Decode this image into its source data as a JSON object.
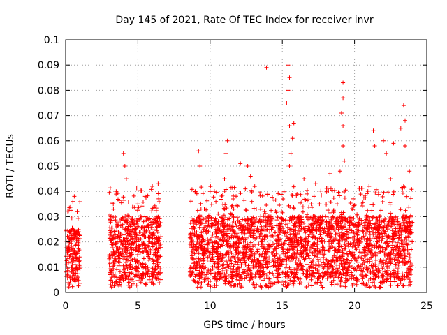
{
  "chart_data": {
    "type": "scatter",
    "title": "Day 145 of 2021, Rate Of TEC Index for receiver invr",
    "xlabel": "GPS time / hours",
    "ylabel": "ROTI / TECUs",
    "xlim": [
      0,
      25
    ],
    "ylim": [
      0,
      0.1
    ],
    "x_ticks": [
      0,
      5,
      10,
      15,
      20,
      25
    ],
    "x_tick_labels": [
      "0",
      "5",
      "10",
      "15",
      "20",
      "25"
    ],
    "y_ticks": [
      0,
      0.01,
      0.02,
      0.03,
      0.04,
      0.05,
      0.06,
      0.07,
      0.08,
      0.09,
      0.1
    ],
    "y_tick_labels": [
      "0",
      "0.01",
      "0.02",
      "0.03",
      "0.04",
      "0.05",
      "0.06",
      "0.07",
      "0.08",
      "0.09",
      "0.1"
    ],
    "grid": true,
    "marker": "+",
    "color": "#ff0000",
    "segments": [
      {
        "x_start": 0.0,
        "x_end": 1.0,
        "low": 0.005,
        "high": 0.025
      },
      {
        "x_start": 3.0,
        "x_end": 6.6,
        "low": 0.005,
        "high": 0.03
      },
      {
        "x_start": 8.6,
        "x_end": 24.0,
        "low": 0.005,
        "high": 0.03
      }
    ],
    "outliers": [
      {
        "x": 0.5,
        "y": 0.036
      },
      {
        "x": 0.6,
        "y": 0.038
      },
      {
        "x": 0.8,
        "y": 0.032
      },
      {
        "x": 3.3,
        "y": 0.035
      },
      {
        "x": 3.5,
        "y": 0.04
      },
      {
        "x": 4.0,
        "y": 0.055
      },
      {
        "x": 4.1,
        "y": 0.05
      },
      {
        "x": 4.2,
        "y": 0.045
      },
      {
        "x": 5.0,
        "y": 0.035
      },
      {
        "x": 5.5,
        "y": 0.038
      },
      {
        "x": 6.0,
        "y": 0.042
      },
      {
        "x": 6.4,
        "y": 0.043
      },
      {
        "x": 9.2,
        "y": 0.056
      },
      {
        "x": 9.3,
        "y": 0.05
      },
      {
        "x": 10.0,
        "y": 0.04
      },
      {
        "x": 11.2,
        "y": 0.06
      },
      {
        "x": 11.1,
        "y": 0.055
      },
      {
        "x": 11.0,
        "y": 0.045
      },
      {
        "x": 12.1,
        "y": 0.051
      },
      {
        "x": 12.6,
        "y": 0.05
      },
      {
        "x": 12.8,
        "y": 0.046
      },
      {
        "x": 13.9,
        "y": 0.089
      },
      {
        "x": 15.4,
        "y": 0.09
      },
      {
        "x": 15.5,
        "y": 0.085
      },
      {
        "x": 15.4,
        "y": 0.08
      },
      {
        "x": 15.3,
        "y": 0.075
      },
      {
        "x": 15.5,
        "y": 0.066
      },
      {
        "x": 15.7,
        "y": 0.061
      },
      {
        "x": 15.8,
        "y": 0.067
      },
      {
        "x": 15.6,
        "y": 0.055
      },
      {
        "x": 15.5,
        "y": 0.05
      },
      {
        "x": 16.5,
        "y": 0.045
      },
      {
        "x": 17.3,
        "y": 0.043
      },
      {
        "x": 18.3,
        "y": 0.047
      },
      {
        "x": 19.0,
        "y": 0.048
      },
      {
        "x": 19.2,
        "y": 0.083
      },
      {
        "x": 19.2,
        "y": 0.077
      },
      {
        "x": 19.1,
        "y": 0.071
      },
      {
        "x": 19.2,
        "y": 0.066
      },
      {
        "x": 19.2,
        "y": 0.058
      },
      {
        "x": 19.3,
        "y": 0.052
      },
      {
        "x": 21.3,
        "y": 0.064
      },
      {
        "x": 21.4,
        "y": 0.058
      },
      {
        "x": 22.0,
        "y": 0.06
      },
      {
        "x": 22.2,
        "y": 0.055
      },
      {
        "x": 22.7,
        "y": 0.059
      },
      {
        "x": 23.2,
        "y": 0.065
      },
      {
        "x": 23.4,
        "y": 0.074
      },
      {
        "x": 23.5,
        "y": 0.068
      },
      {
        "x": 23.5,
        "y": 0.058
      },
      {
        "x": 23.8,
        "y": 0.048
      },
      {
        "x": 20.5,
        "y": 0.035
      },
      {
        "x": 21.0,
        "y": 0.042
      },
      {
        "x": 22.5,
        "y": 0.045
      },
      {
        "x": 14.0,
        "y": 0.03
      },
      {
        "x": 13.2,
        "y": 0.033
      },
      {
        "x": 17.0,
        "y": 0.035
      },
      {
        "x": 18.0,
        "y": 0.03
      },
      {
        "x": 10.4,
        "y": 0.036
      },
      {
        "x": 9.6,
        "y": 0.033
      }
    ]
  }
}
